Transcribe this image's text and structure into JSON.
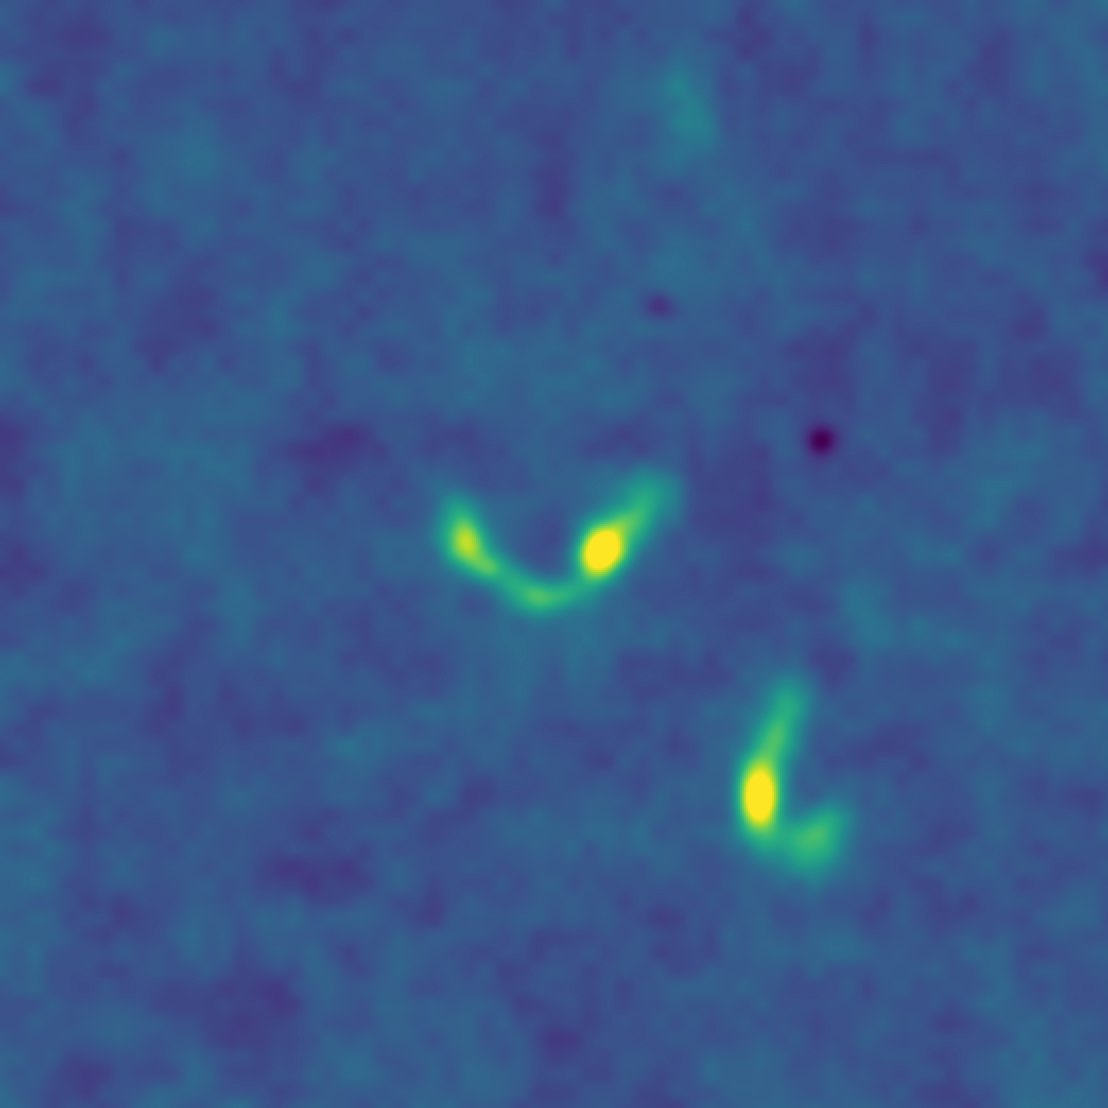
{
  "image": {
    "kind": "intensity-map",
    "colormap": "viridis",
    "colormap_stops": [
      "#440154",
      "#472d7b",
      "#3b528b",
      "#2c728e",
      "#21918c",
      "#28ae80",
      "#5ec962",
      "#addc30",
      "#fde725"
    ],
    "background_color": "#3b528b",
    "features": [
      {
        "name": "central-arc-left-arm",
        "peak_level": 0.72
      },
      {
        "name": "central-arc-right-peak",
        "peak_level": 1.0
      },
      {
        "name": "central-arc-bottom-knot",
        "peak_level": 0.62
      },
      {
        "name": "lower-right-streak-peak",
        "peak_level": 0.95
      },
      {
        "name": "lower-right-streak-upper",
        "peak_level": 0.6
      },
      {
        "name": "lower-right-streak-foot",
        "peak_level": 0.66
      },
      {
        "name": "upper-faint-blob",
        "peak_level": 0.42
      },
      {
        "name": "dark-spot-right",
        "peak_level": 0.0
      },
      {
        "name": "dark-spot-upper",
        "peak_level": 0.1
      },
      {
        "name": "dark-patch-lower-left",
        "peak_level": 0.12
      }
    ]
  }
}
